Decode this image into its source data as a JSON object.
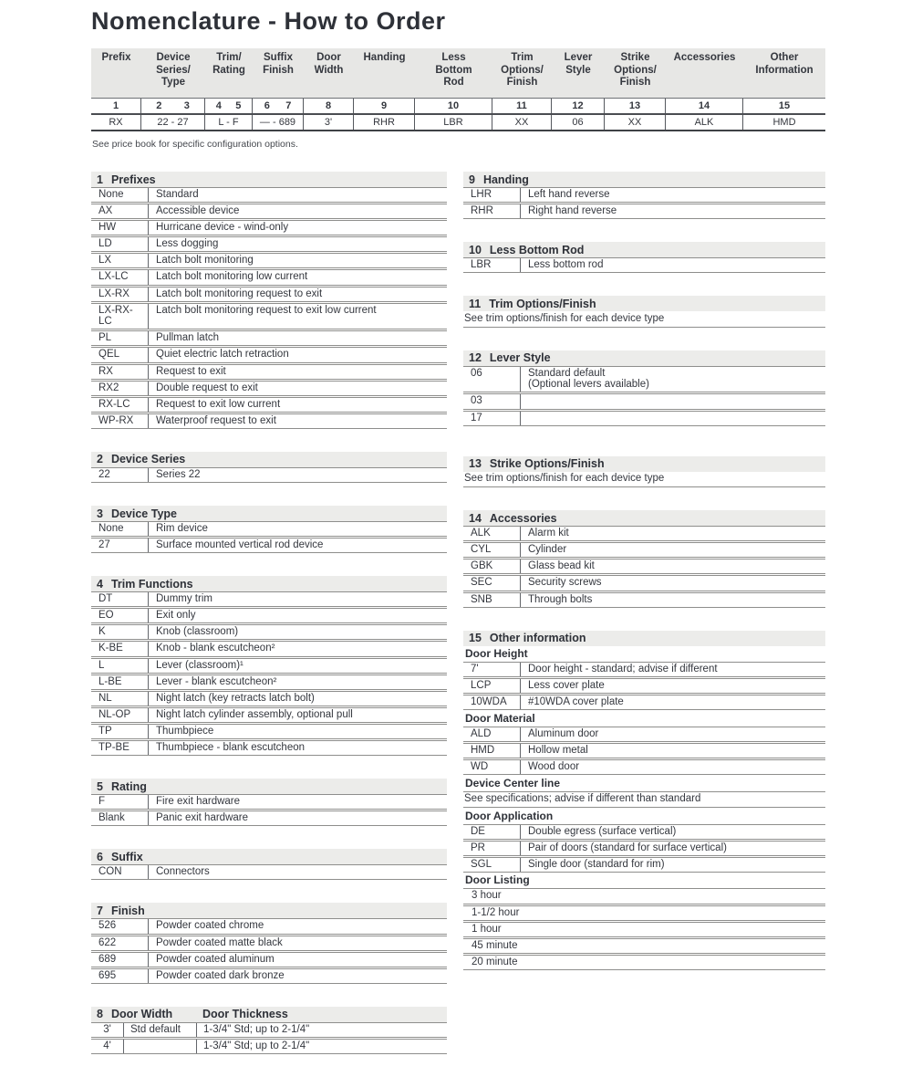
{
  "title": "Nomenclature - How to Order",
  "price_note": "See price book for specific configuration options.",
  "colors": {
    "table_header_band": "#e7e7e5",
    "section_header_band": "#ececea",
    "text": "#34373e",
    "rule_line": "#8e8e8c",
    "dark_rule": "#3f4146"
  },
  "top_table": {
    "columns": [
      {
        "header": "Prefix",
        "numbers": [
          "1"
        ],
        "example": "RX"
      },
      {
        "header": "Device\nSeries/\nType",
        "numbers": [
          "2",
          "3"
        ],
        "example": "22 - 27"
      },
      {
        "header": "Trim/\nRating",
        "numbers": [
          "4",
          "5"
        ],
        "example": "L - F"
      },
      {
        "header": "Suffix\nFinish",
        "numbers": [
          "6",
          "7"
        ],
        "example": "— - 689"
      },
      {
        "header": "Door\nWidth",
        "numbers": [
          "8"
        ],
        "example": "3'"
      },
      {
        "header": "Handing",
        "numbers": [
          "9"
        ],
        "example": "RHR"
      },
      {
        "header": "Less\nBottom\nRod",
        "numbers": [
          "10"
        ],
        "example": "LBR"
      },
      {
        "header": "Trim\nOptions/\nFinish",
        "numbers": [
          "11"
        ],
        "example": "XX"
      },
      {
        "header": "Lever\nStyle",
        "numbers": [
          "12"
        ],
        "example": "06"
      },
      {
        "header": "Strike\nOptions/\nFinish",
        "numbers": [
          "13"
        ],
        "example": "XX"
      },
      {
        "header": "Accessories",
        "numbers": [
          "14"
        ],
        "example": "ALK"
      },
      {
        "header": "Other\nInformation",
        "numbers": [
          "15"
        ],
        "example": "HMD"
      }
    ]
  },
  "left_sections": [
    {
      "id": "1",
      "title": "Prefixes",
      "rows": [
        [
          "None",
          "Standard"
        ],
        [
          "AX",
          "Accessible device"
        ],
        [
          "HW",
          "Hurricane device - wind-only"
        ],
        [
          "LD",
          "Less dogging"
        ],
        [
          "LX",
          "Latch bolt monitoring"
        ],
        [
          "LX-LC",
          "Latch bolt monitoring low current"
        ],
        [
          "LX-RX",
          "Latch bolt monitoring request to exit"
        ],
        [
          "LX-RX-LC",
          "Latch bolt monitoring request to exit low current"
        ],
        [
          "PL",
          "Pullman latch"
        ],
        [
          "QEL",
          "Quiet electric latch retraction"
        ],
        [
          "RX",
          "Request to exit"
        ],
        [
          "RX2",
          "Double request to exit"
        ],
        [
          "RX-LC",
          "Request to exit low current"
        ],
        [
          "WP-RX",
          "Waterproof request to exit"
        ]
      ]
    },
    {
      "id": "2",
      "title": "Device Series",
      "rows": [
        [
          "22",
          "Series 22"
        ]
      ]
    },
    {
      "id": "3",
      "title": "Device Type",
      "rows": [
        [
          "None",
          "Rim device"
        ],
        [
          "27",
          "Surface mounted vertical rod device"
        ]
      ]
    },
    {
      "id": "4",
      "title": "Trim Functions",
      "rows": [
        [
          "DT",
          "Dummy trim"
        ],
        [
          "EO",
          "Exit only"
        ],
        [
          "K",
          "Knob (classroom)"
        ],
        [
          "K-BE",
          "Knob - blank escutcheon²"
        ],
        [
          "L",
          "Lever (classroom)¹"
        ],
        [
          "L-BE",
          "Lever - blank escutcheon²"
        ],
        [
          "NL",
          "Night latch (key retracts latch bolt)"
        ],
        [
          "NL-OP",
          "Night latch cylinder assembly, optional pull"
        ],
        [
          "TP",
          "Thumbpiece"
        ],
        [
          "TP-BE",
          "Thumbpiece - blank escutcheon"
        ]
      ]
    },
    {
      "id": "5",
      "title": "Rating",
      "rows": [
        [
          "F",
          "Fire exit hardware"
        ],
        [
          "Blank",
          "Panic exit hardware"
        ]
      ]
    },
    {
      "id": "6",
      "title": "Suffix",
      "rows": [
        [
          "CON",
          "Connectors"
        ]
      ]
    },
    {
      "id": "7",
      "title": "Finish",
      "rows": [
        [
          "526",
          "Powder coated chrome"
        ],
        [
          "622",
          "Powder coated matte black"
        ],
        [
          "689",
          "Powder coated aluminum"
        ],
        [
          "695",
          "Powder coated dark bronze"
        ]
      ]
    },
    {
      "id": "8",
      "title": "Door Width",
      "title2": "Door Thickness",
      "rows3": [
        [
          "3'",
          "Std default",
          "1-3/4\" Std; up to 2-1/4\""
        ],
        [
          "4'",
          "",
          "1-3/4\" Std; up to 2-1/4\""
        ]
      ]
    }
  ],
  "right_sections": [
    {
      "id": "9",
      "title": "Handing",
      "rows": [
        [
          "LHR",
          "Left hand reverse"
        ],
        [
          "RHR",
          "Right hand reverse"
        ]
      ]
    },
    {
      "id": "10",
      "title": "Less Bottom Rod",
      "rows": [
        [
          "LBR",
          "Less bottom rod"
        ]
      ]
    },
    {
      "id": "11",
      "title": "Trim Options/Finish",
      "note": "See trim options/finish for each device type"
    },
    {
      "id": "12",
      "title": "Lever Style",
      "rows": [
        [
          "06",
          "Standard default\n(Optional levers available)"
        ],
        [
          "03",
          ""
        ],
        [
          "17",
          ""
        ]
      ]
    },
    {
      "id": "13",
      "title": "Strike Options/Finish",
      "note": "See trim options/finish for each device type"
    },
    {
      "id": "14",
      "title": "Accessories",
      "rows": [
        [
          "ALK",
          "Alarm kit"
        ],
        [
          "CYL",
          "Cylinder"
        ],
        [
          "GBK",
          "Glass bead kit"
        ],
        [
          "SEC",
          "Security screws"
        ],
        [
          "SNB",
          "Through bolts"
        ]
      ]
    },
    {
      "id": "15",
      "title": "Other information",
      "subsections": [
        {
          "subtitle": "Door Height",
          "rows": [
            [
              "7'",
              "Door height - standard; advise if different"
            ],
            [
              "LCP",
              "Less cover plate"
            ],
            [
              "10WDA",
              "#10WDA cover plate"
            ]
          ]
        },
        {
          "subtitle": "Door Material",
          "rows": [
            [
              "ALD",
              "Aluminum door"
            ],
            [
              "HMD",
              "Hollow metal"
            ],
            [
              "WD",
              "Wood door"
            ]
          ]
        },
        {
          "subtitle": "Device Center line",
          "note": "See specifications; advise if different than standard"
        },
        {
          "subtitle": "Door Application",
          "rows": [
            [
              "DE",
              "Double egress (surface vertical)"
            ],
            [
              "PR",
              "Pair of doors (standard for surface vertical)"
            ],
            [
              "SGL",
              "Single door (standard for rim)"
            ]
          ]
        },
        {
          "subtitle": "Door Listing",
          "list": [
            "3 hour",
            "1-1/2 hour",
            "1 hour",
            "45 minute",
            "20 minute"
          ]
        }
      ]
    }
  ]
}
